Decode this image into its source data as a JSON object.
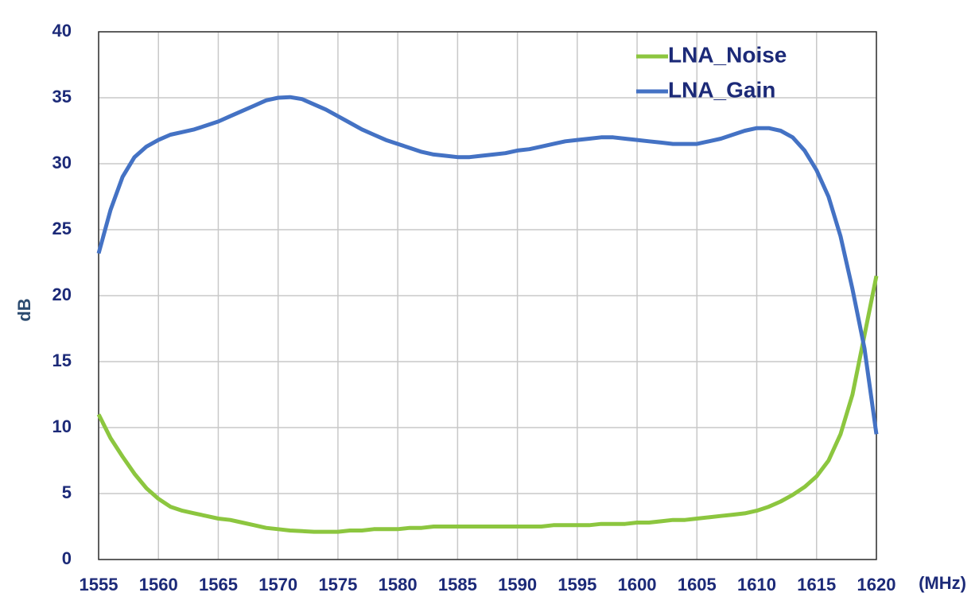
{
  "chart_data": {
    "type": "line",
    "xlabel": "(MHz)",
    "ylabel": "dB",
    "x": [
      1555,
      1556,
      1557,
      1558,
      1559,
      1560,
      1561,
      1562,
      1563,
      1564,
      1565,
      1566,
      1567,
      1568,
      1569,
      1570,
      1571,
      1572,
      1573,
      1574,
      1575,
      1576,
      1577,
      1578,
      1579,
      1580,
      1581,
      1582,
      1583,
      1584,
      1585,
      1586,
      1587,
      1588,
      1589,
      1590,
      1591,
      1592,
      1593,
      1594,
      1595,
      1596,
      1597,
      1598,
      1599,
      1600,
      1601,
      1602,
      1603,
      1604,
      1605,
      1606,
      1607,
      1608,
      1609,
      1610,
      1611,
      1612,
      1613,
      1614,
      1615,
      1616,
      1617,
      1618,
      1619,
      1620
    ],
    "series": [
      {
        "name": "LNA_Noise",
        "color": "#8cc63f",
        "values": [
          11,
          9.2,
          7.8,
          6.5,
          5.4,
          4.6,
          4.0,
          3.7,
          3.5,
          3.3,
          3.1,
          3.0,
          2.8,
          2.6,
          2.4,
          2.3,
          2.2,
          2.15,
          2.1,
          2.1,
          2.1,
          2.2,
          2.2,
          2.3,
          2.3,
          2.3,
          2.4,
          2.4,
          2.5,
          2.5,
          2.5,
          2.5,
          2.5,
          2.5,
          2.5,
          2.5,
          2.5,
          2.5,
          2.6,
          2.6,
          2.6,
          2.6,
          2.7,
          2.7,
          2.7,
          2.8,
          2.8,
          2.9,
          3.0,
          3.0,
          3.1,
          3.2,
          3.3,
          3.4,
          3.5,
          3.7,
          4.0,
          4.4,
          4.9,
          5.5,
          6.3,
          7.5,
          9.5,
          12.5,
          17,
          21.5
        ]
      },
      {
        "name": "LNA_Gain",
        "color": "#4472c4",
        "values": [
          23.2,
          26.5,
          29,
          30.5,
          31.3,
          31.8,
          32.2,
          32.4,
          32.6,
          32.9,
          33.2,
          33.6,
          34.0,
          34.4,
          34.8,
          35.0,
          35.05,
          34.9,
          34.5,
          34.1,
          33.6,
          33.1,
          32.6,
          32.2,
          31.8,
          31.5,
          31.2,
          30.9,
          30.7,
          30.6,
          30.5,
          30.5,
          30.6,
          30.7,
          30.8,
          31.0,
          31.1,
          31.3,
          31.5,
          31.7,
          31.8,
          31.9,
          32.0,
          32.0,
          31.9,
          31.8,
          31.7,
          31.6,
          31.5,
          31.5,
          31.5,
          31.7,
          31.9,
          32.2,
          32.5,
          32.7,
          32.7,
          32.5,
          32.0,
          31.0,
          29.5,
          27.5,
          24.5,
          20.5,
          16,
          9.5
        ]
      }
    ],
    "xlim": [
      1555,
      1620
    ],
    "ylim": [
      0,
      40
    ],
    "xticks": [
      1555,
      1560,
      1565,
      1570,
      1575,
      1580,
      1585,
      1590,
      1595,
      1600,
      1605,
      1610,
      1615,
      1620
    ],
    "yticks": [
      0,
      5,
      10,
      15,
      20,
      25,
      30,
      35,
      40
    ],
    "grid": true,
    "legend": "upper right"
  }
}
